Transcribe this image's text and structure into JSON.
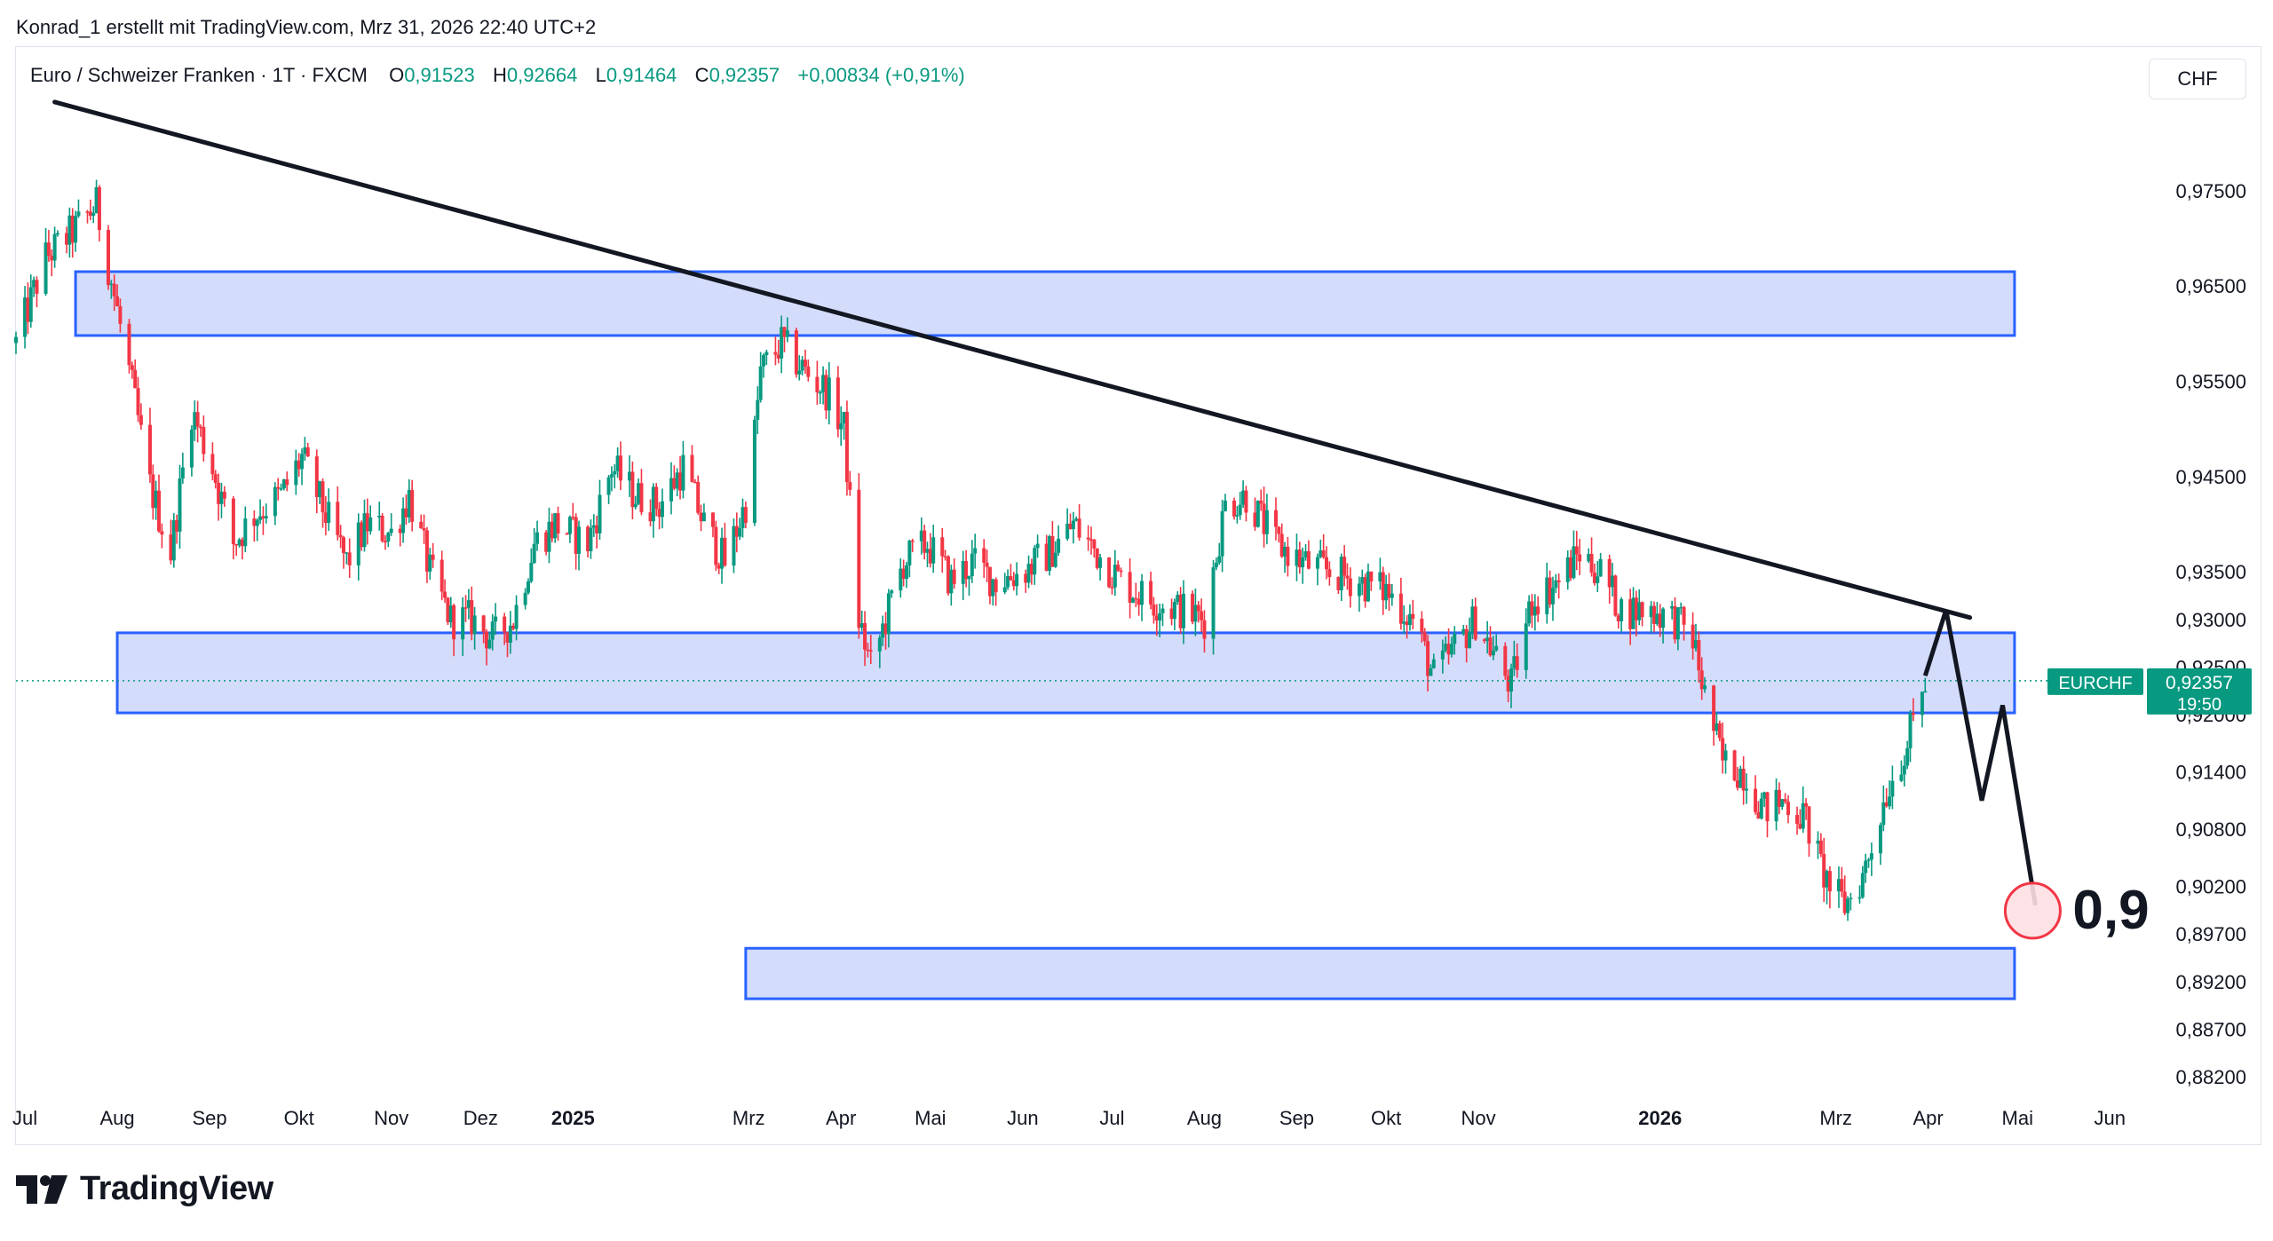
{
  "attribution": "Konrad_1 erstellt mit TradingView.com, Mrz 31, 2026 22:40 UTC+2",
  "legend": {
    "symbol": "Euro / Schweizer Franken · 1T · FXCM",
    "open_label": "O",
    "open": "0,91523",
    "high_label": "H",
    "high": "0,92664",
    "low_label": "L",
    "low": "0,91464",
    "close_label": "C",
    "close": "0,92357",
    "change": "+0,00834 (+0,91%)"
  },
  "currency_button": "CHF",
  "brand": {
    "name": "TradingView",
    "icon": "tradingview-logo-icon"
  },
  "colors": {
    "up": "#089981",
    "down": "#f23645",
    "zone_fill": "#d4dcfb",
    "zone_border": "#2962ff",
    "line": "#131722",
    "price_tag": "#089981",
    "target": "#f23645"
  },
  "chart_data": {
    "type": "candlestick",
    "instrument": "EURCHF",
    "timeframe": "1T",
    "ylim": [
      0.8795,
      0.9815
    ],
    "y_ticks": [
      "0,97500",
      "0,96500",
      "0,95500",
      "0,94500",
      "0,93500",
      "0,93000",
      "0,92500",
      "0,92000",
      "0,91400",
      "0,90800",
      "0,90200",
      "0,89700",
      "0,89200",
      "0,88700",
      "0,88200"
    ],
    "x_ticks": [
      {
        "label": "Jul",
        "date": "2024-07-01",
        "bold": false
      },
      {
        "label": "Aug",
        "date": "2024-08-01",
        "bold": false
      },
      {
        "label": "Sep",
        "date": "2024-09-01",
        "bold": false
      },
      {
        "label": "Okt",
        "date": "2024-10-01",
        "bold": false
      },
      {
        "label": "Nov",
        "date": "2024-11-01",
        "bold": false
      },
      {
        "label": "Dez",
        "date": "2024-12-01",
        "bold": false
      },
      {
        "label": "2025",
        "date": "2025-01-01",
        "bold": true
      },
      {
        "label": "Mrz",
        "date": "2025-03-01",
        "bold": false
      },
      {
        "label": "Apr",
        "date": "2025-04-01",
        "bold": false
      },
      {
        "label": "Mai",
        "date": "2025-05-01",
        "bold": false
      },
      {
        "label": "Jun",
        "date": "2025-06-01",
        "bold": false
      },
      {
        "label": "Jul",
        "date": "2025-07-01",
        "bold": false
      },
      {
        "label": "Aug",
        "date": "2025-08-01",
        "bold": false
      },
      {
        "label": "Sep",
        "date": "2025-09-01",
        "bold": false
      },
      {
        "label": "Okt",
        "date": "2025-10-01",
        "bold": false
      },
      {
        "label": "Nov",
        "date": "2025-11-01",
        "bold": false
      },
      {
        "label": "2026",
        "date": "2026-01-01",
        "bold": true
      },
      {
        "label": "Mrz",
        "date": "2026-03-01",
        "bold": false
      },
      {
        "label": "Apr",
        "date": "2026-04-01",
        "bold": false
      },
      {
        "label": "Mai",
        "date": "2026-05-01",
        "bold": false
      },
      {
        "label": "Jun",
        "date": "2026-06-01",
        "bold": false
      }
    ],
    "close_path": [
      [
        "2024-06-28",
        0.959
      ],
      [
        "2024-07-08",
        0.968
      ],
      [
        "2024-07-18",
        0.971
      ],
      [
        "2024-07-25",
        0.9735
      ],
      [
        "2024-07-31",
        0.964
      ],
      [
        "2024-08-05",
        0.956
      ],
      [
        "2024-08-12",
        0.944
      ],
      [
        "2024-08-19",
        0.937
      ],
      [
        "2024-08-26",
        0.952
      ],
      [
        "2024-09-02",
        0.946
      ],
      [
        "2024-09-09",
        0.938
      ],
      [
        "2024-09-16",
        0.941
      ],
      [
        "2024-09-25",
        0.943
      ],
      [
        "2024-10-02",
        0.947
      ],
      [
        "2024-10-10",
        0.941
      ],
      [
        "2024-10-17",
        0.936
      ],
      [
        "2024-10-24",
        0.94
      ],
      [
        "2024-11-01",
        0.939
      ],
      [
        "2024-11-07",
        0.943
      ],
      [
        "2024-11-14",
        0.935
      ],
      [
        "2024-11-21",
        0.93
      ],
      [
        "2024-11-28",
        0.93
      ],
      [
        "2024-12-05",
        0.928
      ],
      [
        "2024-12-12",
        0.93
      ],
      [
        "2024-12-19",
        0.938
      ],
      [
        "2024-12-26",
        0.94
      ],
      [
        "2025-01-06",
        0.938
      ],
      [
        "2025-01-14",
        0.946
      ],
      [
        "2025-01-22",
        0.943
      ],
      [
        "2025-01-30",
        0.942
      ],
      [
        "2025-02-07",
        0.946
      ],
      [
        "2025-02-14",
        0.94
      ],
      [
        "2025-02-21",
        0.936
      ],
      [
        "2025-03-01",
        0.943
      ],
      [
        "2025-03-05",
        0.956
      ],
      [
        "2025-03-12",
        0.959
      ],
      [
        "2025-03-20",
        0.956
      ],
      [
        "2025-03-27",
        0.954
      ],
      [
        "2025-04-02",
        0.95
      ],
      [
        "2025-04-07",
        0.93
      ],
      [
        "2025-04-11",
        0.925
      ],
      [
        "2025-04-16",
        0.93
      ],
      [
        "2025-04-22",
        0.936
      ],
      [
        "2025-04-30",
        0.938
      ],
      [
        "2025-05-08",
        0.934
      ],
      [
        "2025-05-15",
        0.936
      ],
      [
        "2025-05-23",
        0.934
      ],
      [
        "2025-06-01",
        0.935
      ],
      [
        "2025-06-10",
        0.937
      ],
      [
        "2025-06-18",
        0.94
      ],
      [
        "2025-06-26",
        0.937
      ],
      [
        "2025-07-04",
        0.934
      ],
      [
        "2025-07-14",
        0.932
      ],
      [
        "2025-07-24",
        0.931
      ],
      [
        "2025-08-01",
        0.93
      ],
      [
        "2025-08-08",
        0.942
      ],
      [
        "2025-08-15",
        0.943
      ],
      [
        "2025-08-25",
        0.938
      ],
      [
        "2025-09-03",
        0.936
      ],
      [
        "2025-09-12",
        0.935
      ],
      [
        "2025-09-22",
        0.934
      ],
      [
        "2025-10-01",
        0.933
      ],
      [
        "2025-10-10",
        0.93
      ],
      [
        "2025-10-17",
        0.924
      ],
      [
        "2025-10-24",
        0.927
      ],
      [
        "2025-10-31",
        0.93
      ],
      [
        "2025-11-07",
        0.926
      ],
      [
        "2025-11-12",
        0.923
      ],
      [
        "2025-11-19",
        0.932
      ],
      [
        "2025-11-28",
        0.934
      ],
      [
        "2025-12-05",
        0.937
      ],
      [
        "2025-12-12",
        0.935
      ],
      [
        "2025-12-19",
        0.931
      ],
      [
        "2025-12-29",
        0.931
      ],
      [
        "2026-01-06",
        0.93
      ],
      [
        "2026-01-12",
        0.928
      ],
      [
        "2026-01-16",
        0.922
      ],
      [
        "2026-01-22",
        0.915
      ],
      [
        "2026-01-29",
        0.914
      ],
      [
        "2026-02-05",
        0.91
      ],
      [
        "2026-02-12",
        0.911
      ],
      [
        "2026-02-19",
        0.909
      ],
      [
        "2026-02-24",
        0.904
      ],
      [
        "2026-02-27",
        0.902
      ],
      [
        "2026-03-04",
        0.9
      ],
      [
        "2026-03-10",
        0.903
      ],
      [
        "2026-03-18",
        0.912
      ],
      [
        "2026-03-25",
        0.917
      ],
      [
        "2026-03-31",
        0.92357
      ]
    ],
    "zones": [
      {
        "from": "2024-07-18",
        "to": "2026-04-30",
        "top": 0.9665,
        "bottom": 0.9598
      },
      {
        "from": "2024-08-01",
        "to": "2026-04-30",
        "top": 0.9286,
        "bottom": 0.9202
      },
      {
        "from": "2025-02-28",
        "to": "2026-04-30",
        "top": 0.8955,
        "bottom": 0.8902
      }
    ],
    "trendline": [
      [
        "2024-07-11",
        0.9843
      ],
      [
        "2026-04-15",
        0.9302
      ]
    ],
    "projection": [
      [
        "2026-03-31",
        0.9241
      ],
      [
        "2026-04-07",
        0.931
      ],
      [
        "2026-04-19",
        0.911
      ],
      [
        "2026-04-26",
        0.921
      ],
      [
        "2026-05-07",
        0.9
      ]
    ],
    "last_price": {
      "symbol": "EURCHF",
      "value": "0,92357",
      "countdown": "19:50"
    },
    "price_under_tag": "0,92000",
    "target": {
      "label": "0,9",
      "date": "2026-05-07",
      "value": 0.9
    }
  }
}
